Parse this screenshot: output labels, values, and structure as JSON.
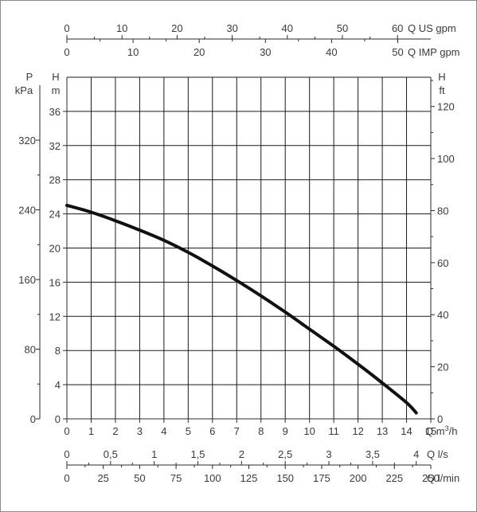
{
  "chart_data": {
    "type": "line",
    "title": "",
    "series": [
      {
        "name": "",
        "x": [
          0,
          1,
          2,
          3,
          4,
          5,
          6,
          7,
          8,
          9,
          10,
          11,
          12,
          13,
          14,
          14.4
        ],
        "y": [
          25,
          24.2,
          23.2,
          22.1,
          20.9,
          19.5,
          17.9,
          16.2,
          14.4,
          12.5,
          10.5,
          8.5,
          6.4,
          4.2,
          1.9,
          0.7
        ]
      }
    ],
    "x_axes": {
      "m3h": {
        "label_prefix": "Q",
        "label_unit": "m",
        "label_sup": "3",
        "label_suffix": "/h",
        "range": [
          0,
          15
        ],
        "ticks": [
          "0",
          "1",
          "2",
          "3",
          "4",
          "5",
          "6",
          "7",
          "8",
          "9",
          "10",
          "11",
          "12",
          "13",
          "14",
          "15"
        ]
      },
      "us_gpm": {
        "label": "Q US gpm",
        "ticks": [
          "0",
          "10",
          "20",
          "30",
          "40",
          "50",
          "60"
        ]
      },
      "imp_gpm": {
        "label": "Q IMP gpm",
        "ticks": [
          "0",
          "10",
          "20",
          "30",
          "40",
          "50"
        ]
      },
      "ls": {
        "label": "Q l/s",
        "ticks": [
          "0",
          "0,5",
          "1",
          "1,5",
          "2",
          "2,5",
          "3",
          "3,5",
          "4"
        ]
      },
      "lmin": {
        "label": "Q l/min",
        "ticks": [
          "0",
          "25",
          "50",
          "75",
          "100",
          "125",
          "150",
          "175",
          "200",
          "225",
          "250"
        ]
      }
    },
    "y_axes": {
      "head_m": {
        "label_top": "H",
        "label_unit": "m",
        "range": [
          0,
          40
        ],
        "ticks": [
          "0",
          "4",
          "8",
          "12",
          "16",
          "20",
          "24",
          "28",
          "32",
          "36"
        ]
      },
      "pressure_kpa": {
        "label_top": "P",
        "label_unit": "kPa",
        "ticks": [
          "0",
          "80",
          "160",
          "240",
          "320"
        ]
      },
      "head_ft": {
        "label_top": "H",
        "label_unit": "ft",
        "ticks": [
          "0",
          "20",
          "40",
          "60",
          "80",
          "100",
          "120"
        ]
      }
    },
    "grid": true
  }
}
